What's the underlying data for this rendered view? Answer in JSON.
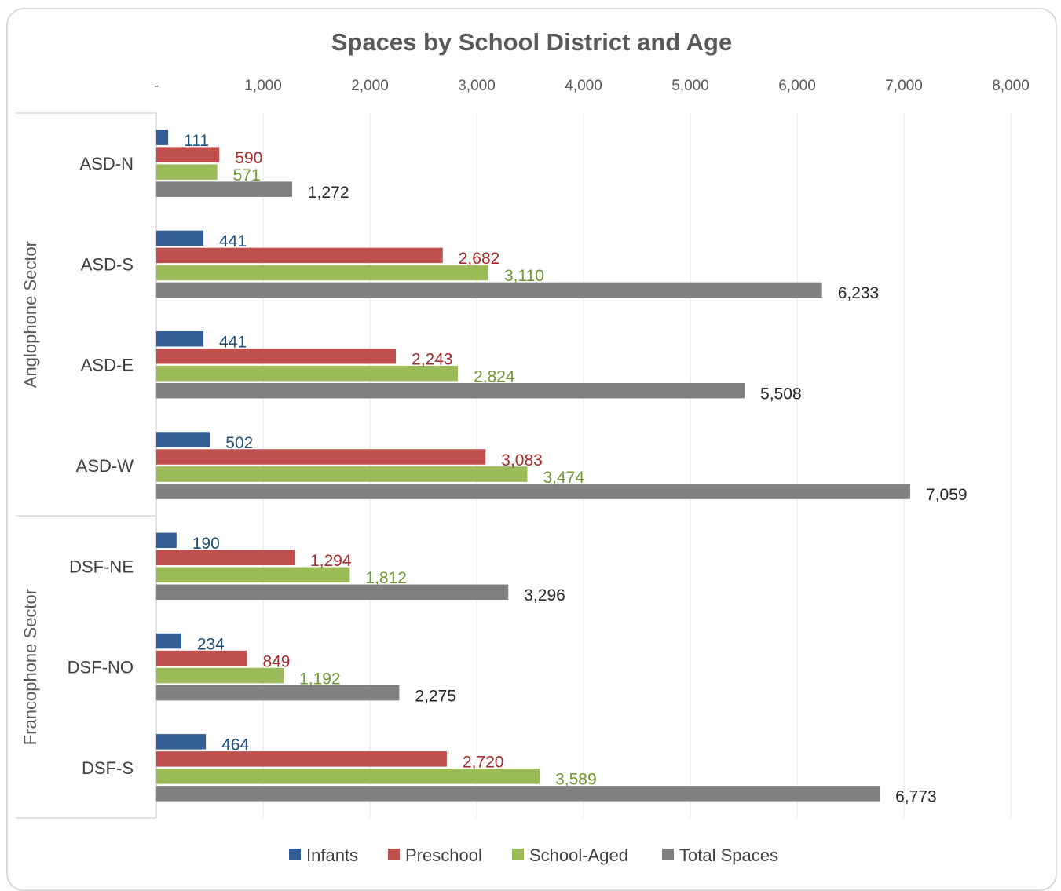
{
  "chart_data": {
    "type": "bar",
    "orientation": "horizontal",
    "title": "Spaces by School District and Age",
    "xlim": [
      0,
      8000
    ],
    "x_ticks": [
      0,
      1000,
      2000,
      3000,
      4000,
      5000,
      6000,
      7000,
      8000
    ],
    "x_tick_labels": [
      "-",
      "1,000",
      "2,000",
      "3,000",
      "4,000",
      "5,000",
      "6,000",
      "7,000",
      "8,000"
    ],
    "x_axis_position": "top",
    "grid": true,
    "legend_position": "bottom",
    "groups": [
      {
        "name": "Anglophone Sector",
        "categories": [
          "ASD-N",
          "ASD-S",
          "ASD-E",
          "ASD-W"
        ]
      },
      {
        "name": "Francophone Sector",
        "categories": [
          "DSF-NE",
          "DSF-NO",
          "DSF-S"
        ]
      }
    ],
    "categories": [
      "ASD-N",
      "ASD-S",
      "ASD-E",
      "ASD-W",
      "DSF-NE",
      "DSF-NO",
      "DSF-S"
    ],
    "series": [
      {
        "name": "Infants",
        "color": "#335f96",
        "label_color": "#1f4e79",
        "values": [
          111,
          441,
          441,
          502,
          190,
          234,
          464
        ],
        "labels": [
          "111",
          "441",
          "441",
          "502",
          "190",
          "234",
          "464"
        ]
      },
      {
        "name": "Preschool",
        "color": "#c0504d",
        "label_color": "#a52a2a",
        "values": [
          590,
          2682,
          2243,
          3083,
          1294,
          849,
          2720
        ],
        "labels": [
          "590",
          "2,682",
          "2,243",
          "3,083",
          "1,294",
          "849",
          "2,720"
        ]
      },
      {
        "name": "School-Aged",
        "color": "#9bbb59",
        "label_color": "#6f9630",
        "values": [
          571,
          3110,
          2824,
          3474,
          1812,
          1192,
          3589
        ],
        "labels": [
          "571",
          "3,110",
          "2,824",
          "3,474",
          "1,812",
          "1,192",
          "3,589"
        ]
      },
      {
        "name": "Total Spaces",
        "color": "#808080",
        "label_color": "#262626",
        "values": [
          1272,
          6233,
          5508,
          7059,
          3296,
          2275,
          6773
        ],
        "labels": [
          "1,272",
          "6,233",
          "5,508",
          "7,059",
          "3,296",
          "2,275",
          "6,773"
        ]
      }
    ]
  }
}
